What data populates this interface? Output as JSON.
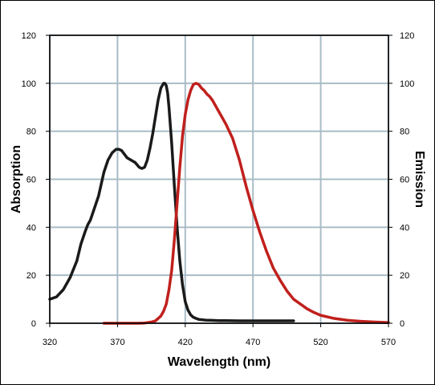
{
  "chart_data": {
    "type": "line",
    "xlabel": "Wavelength (nm)",
    "ylabel": "Absorption",
    "y2label": "Emission",
    "xlim": [
      320,
      570
    ],
    "ylim": [
      0,
      120
    ],
    "y2lim": [
      0,
      120
    ],
    "xticks": [
      "320",
      "370",
      "420",
      "470",
      "520",
      "570"
    ],
    "yticks": [
      "0",
      "20",
      "40",
      "60",
      "80",
      "100",
      "120"
    ],
    "y2ticks": [
      "0",
      "20",
      "40",
      "60",
      "80",
      "100",
      "120"
    ],
    "grid": true,
    "series": [
      {
        "color": "#1a1a1a",
        "axis": "left",
        "x": [
          320,
          325,
          330,
          335,
          340,
          343,
          346,
          348,
          350,
          353,
          356,
          360,
          363,
          366,
          369,
          371,
          373,
          375,
          377,
          380,
          383,
          386,
          388,
          390,
          392,
          394,
          396,
          398,
          400,
          402,
          404,
          405,
          406,
          407,
          408,
          410,
          412,
          414,
          416,
          418,
          420,
          422,
          424,
          426,
          428,
          430,
          435,
          440,
          445,
          450,
          460,
          470,
          480,
          490,
          500
        ],
        "y": [
          10,
          11,
          14,
          19,
          26,
          33,
          38,
          41,
          43,
          48,
          53,
          63,
          68,
          71,
          72.5,
          72.5,
          72,
          70.5,
          69,
          68,
          67,
          65,
          64.5,
          65,
          68,
          73,
          79,
          86,
          93,
          98,
          100,
          100,
          99,
          96,
          90,
          75,
          57,
          40,
          26,
          16,
          9,
          5.5,
          3.5,
          2.5,
          2,
          1.6,
          1.3,
          1.2,
          1.1,
          1.1,
          1,
          1,
          1,
          1,
          1
        ]
      },
      {
        "color": "#c0201d",
        "axis": "right",
        "x": [
          360,
          370,
          380,
          385,
          390,
          395,
          398,
          400,
          402,
          404,
          406,
          408,
          410,
          412,
          414,
          416,
          418,
          420,
          422,
          424,
          426,
          428,
          430,
          432,
          434,
          436,
          438,
          440,
          445,
          450,
          455,
          460,
          465,
          470,
          475,
          480,
          485,
          490,
          495,
          500,
          505,
          510,
          515,
          520,
          530,
          540,
          550,
          560,
          570
        ],
        "y": [
          0,
          0,
          0,
          0,
          0.1,
          0.5,
          1,
          2,
          3,
          5,
          8,
          14,
          22,
          35,
          50,
          65,
          78,
          87,
          93,
          97,
          99.5,
          100,
          99.5,
          98,
          97,
          95.5,
          94.5,
          93,
          88,
          83,
          77,
          68,
          57,
          47,
          38,
          30,
          23,
          18,
          13.5,
          10,
          8,
          6,
          4.5,
          3.3,
          2,
          1.2,
          0.8,
          0.5,
          0.3
        ]
      }
    ]
  }
}
